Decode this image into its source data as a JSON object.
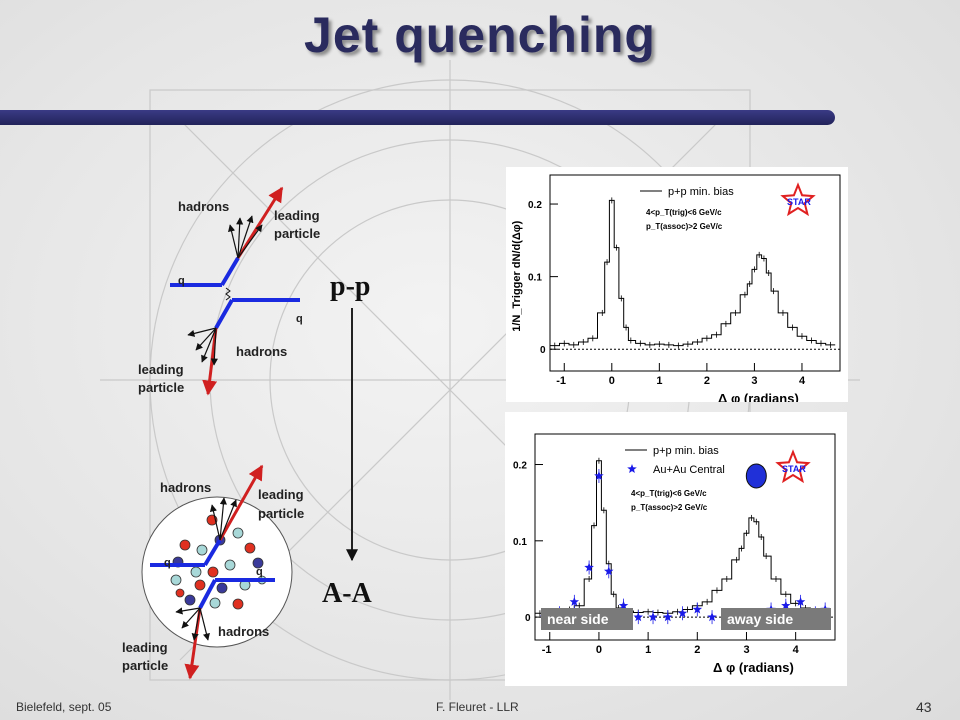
{
  "slide": {
    "title": "Jet quenching",
    "footer_left": "Bielefeld, sept. 05",
    "footer_center": "F. Fleuret - LLR",
    "page_number": "43"
  },
  "diagrams": {
    "pp": {
      "hadrons_top": "hadrons",
      "leading_top": [
        "leading",
        "particle"
      ],
      "q_left": "q",
      "q_right": "q",
      "hadrons_bottom": "hadrons",
      "leading_bottom": [
        "leading",
        "particle"
      ]
    },
    "aa": {
      "hadrons_top": "hadrons",
      "leading_top": [
        "leading",
        "particle"
      ],
      "q_left": "q",
      "q_right": "q",
      "hadrons_bottom": "hadrons",
      "leading_bottom": [
        "leading",
        "particle"
      ]
    },
    "arrow_top": "p-p",
    "arrow_bottom": "A-A"
  },
  "chart_data": [
    {
      "type": "line",
      "ylabel": "1/N_Trigger dN/d(Δφ)",
      "xlabel": "Δ φ (radians)",
      "xlim": [
        -1.3,
        4.8
      ],
      "ylim": [
        -0.03,
        0.24
      ],
      "xticks": [
        -1,
        0,
        1,
        2,
        3,
        4
      ],
      "yticks": [
        0,
        0.1,
        0.2
      ],
      "legend": [
        "p+p min. bias"
      ],
      "annotations": [
        "4<p_T(trig)<6 GeV/c",
        "p_T(assoc)>2 GeV/c",
        "STAR"
      ],
      "series": [
        {
          "name": "p+p min. bias",
          "x": [
            -1.2,
            -1.0,
            -0.8,
            -0.6,
            -0.4,
            -0.2,
            -0.1,
            0.0,
            0.1,
            0.2,
            0.3,
            0.4,
            0.6,
            0.8,
            1.0,
            1.2,
            1.4,
            1.6,
            1.8,
            2.0,
            2.2,
            2.4,
            2.6,
            2.8,
            2.9,
            3.0,
            3.1,
            3.2,
            3.3,
            3.4,
            3.6,
            3.8,
            4.0,
            4.2,
            4.4,
            4.6
          ],
          "values": [
            0.005,
            0.008,
            0.006,
            0.01,
            0.015,
            0.05,
            0.12,
            0.205,
            0.14,
            0.07,
            0.03,
            0.012,
            0.008,
            0.006,
            0.007,
            0.006,
            0.005,
            0.007,
            0.01,
            0.015,
            0.02,
            0.035,
            0.05,
            0.075,
            0.09,
            0.11,
            0.13,
            0.125,
            0.105,
            0.08,
            0.05,
            0.03,
            0.018,
            0.012,
            0.008,
            0.006
          ]
        }
      ]
    },
    {
      "type": "line",
      "ylabel": "",
      "xlabel": "Δ φ (radians)",
      "xlim": [
        -1.3,
        4.8
      ],
      "ylim": [
        -0.03,
        0.24
      ],
      "xticks": [
        -1,
        0,
        1,
        2,
        3,
        4
      ],
      "yticks": [
        0,
        0.1,
        0.2
      ],
      "legend": [
        "p+p min. bias",
        "Au+Au Central"
      ],
      "annotations": [
        "4<p_T(trig)<6 GeV/c",
        "p_T(assoc)>2 GeV/c",
        "STAR",
        "near side",
        "away side"
      ],
      "series": [
        {
          "name": "p+p min. bias",
          "x": [
            -1.2,
            -1.0,
            -0.8,
            -0.6,
            -0.4,
            -0.2,
            -0.1,
            0.0,
            0.1,
            0.2,
            0.3,
            0.4,
            0.6,
            0.8,
            1.0,
            1.2,
            1.4,
            1.6,
            1.8,
            2.0,
            2.2,
            2.4,
            2.6,
            2.8,
            2.9,
            3.0,
            3.1,
            3.2,
            3.3,
            3.4,
            3.6,
            3.8,
            4.0,
            4.2,
            4.4,
            4.6
          ],
          "values": [
            0.005,
            0.008,
            0.006,
            0.01,
            0.015,
            0.05,
            0.12,
            0.205,
            0.14,
            0.07,
            0.03,
            0.012,
            0.008,
            0.006,
            0.007,
            0.006,
            0.005,
            0.007,
            0.01,
            0.015,
            0.02,
            0.035,
            0.05,
            0.075,
            0.09,
            0.11,
            0.13,
            0.125,
            0.105,
            0.08,
            0.05,
            0.03,
            0.018,
            0.012,
            0.008,
            0.006
          ]
        },
        {
          "name": "Au+Au Central",
          "x": [
            -1.1,
            -0.8,
            -0.5,
            -0.2,
            0.0,
            0.2,
            0.5,
            0.8,
            1.1,
            1.4,
            1.7,
            2.0,
            2.3,
            2.6,
            2.9,
            3.2,
            3.5,
            3.8,
            4.1,
            4.4,
            4.6
          ],
          "values": [
            0.0,
            0.005,
            0.02,
            0.065,
            0.185,
            0.06,
            0.015,
            0.0,
            0.0,
            0.0,
            0.005,
            0.01,
            0.0,
            0.0,
            -0.002,
            0.0,
            0.01,
            0.015,
            0.02,
            0.005,
            0.01
          ]
        }
      ]
    }
  ]
}
